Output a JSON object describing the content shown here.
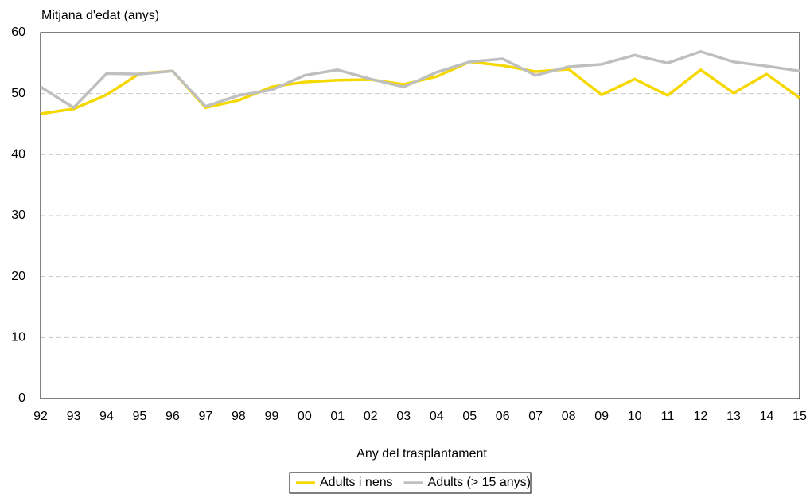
{
  "chart_data": {
    "type": "line",
    "y_axis_label": "Mitjana d'edat (anys)",
    "x_axis_label": "Any del trasplantament",
    "categories": [
      "92",
      "93",
      "94",
      "95",
      "96",
      "97",
      "98",
      "99",
      "00",
      "01",
      "02",
      "03",
      "04",
      "05",
      "06",
      "07",
      "08",
      "09",
      "10",
      "11",
      "12",
      "13",
      "14",
      "15"
    ],
    "series": [
      {
        "name": "Adults i nens",
        "color": "#f5d800",
        "values": [
          46.7,
          47.5,
          49.8,
          53.3,
          53.7,
          47.7,
          48.9,
          51.1,
          51.9,
          52.2,
          52.3,
          51.5,
          52.8,
          55.2,
          54.6,
          53.6,
          54.0,
          49.8,
          52.4,
          49.7,
          53.9,
          50.1,
          53.2,
          49.3
        ]
      },
      {
        "name": "Adults (> 15 anys)",
        "color": "#bfbfbf",
        "values": [
          51.1,
          47.7,
          53.3,
          53.2,
          53.7,
          47.9,
          49.7,
          50.6,
          53.0,
          53.9,
          52.4,
          51.1,
          53.5,
          55.2,
          55.7,
          53.0,
          54.4,
          54.8,
          56.3,
          55.0,
          56.9,
          55.2,
          54.5,
          53.7
        ]
      }
    ],
    "ylim": [
      0,
      60
    ],
    "yticks": [
      0,
      10,
      20,
      30,
      40,
      50,
      60
    ],
    "grid": true,
    "legend": "bottom"
  }
}
